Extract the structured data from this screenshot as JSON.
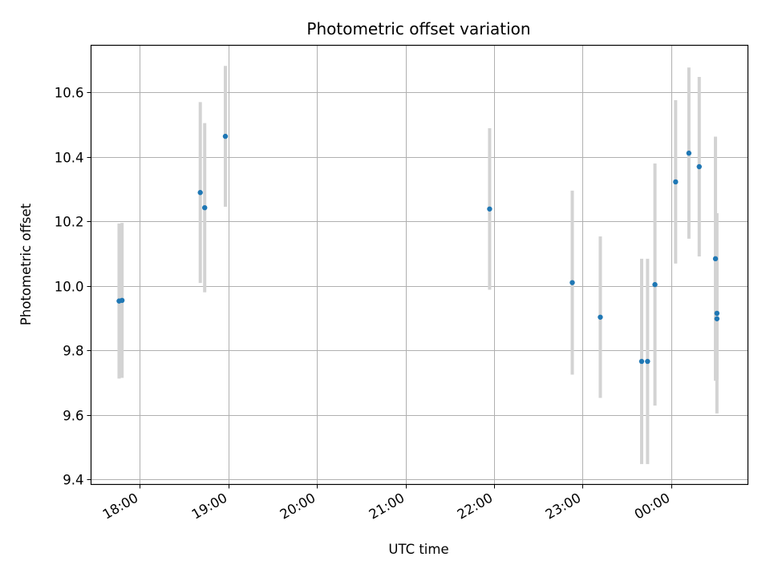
{
  "chart_data": {
    "type": "scatter",
    "title": "Photometric offset variation",
    "xlabel": "UTC time",
    "ylabel": "Photometric offset",
    "x_ticks": [
      "18:00",
      "19:00",
      "20:00",
      "21:00",
      "22:00",
      "23:00",
      "00:00"
    ],
    "y_ticks": [
      "9.4",
      "9.6",
      "9.8",
      "10.0",
      "10.2",
      "10.4",
      "10.6"
    ],
    "x_tick_hours": [
      0,
      1,
      2,
      3,
      4,
      5,
      6
    ],
    "y_tick_values": [
      9.4,
      9.6,
      9.8,
      10.0,
      10.2,
      10.4,
      10.6
    ],
    "xlim": [
      "17:27",
      "00:52"
    ],
    "ylim": [
      9.385,
      10.745
    ],
    "grid": true,
    "colors": {
      "point": "#1f77b4",
      "errorbar": "#d3d3d3",
      "grid": "#b0b0b0"
    },
    "points": [
      {
        "time": "17:46",
        "y": 9.953,
        "err": 0.24
      },
      {
        "time": "17:48",
        "y": 9.955,
        "err": 0.24
      },
      {
        "time": "18:41",
        "y": 10.289,
        "err": 0.28
      },
      {
        "time": "18:44",
        "y": 10.242,
        "err": 0.262
      },
      {
        "time": "18:58",
        "y": 10.463,
        "err": 0.218
      },
      {
        "time": "21:57",
        "y": 10.238,
        "err": 0.25
      },
      {
        "time": "22:53",
        "y": 10.01,
        "err": 0.285
      },
      {
        "time": "23:12",
        "y": 9.903,
        "err": 0.25
      },
      {
        "time": "23:40",
        "y": 9.766,
        "err": 0.318
      },
      {
        "time": "23:44",
        "y": 9.766,
        "err": 0.318
      },
      {
        "time": "23:49",
        "y": 10.004,
        "err": 0.375
      },
      {
        "time": "00:03",
        "y": 10.322,
        "err": 0.253
      },
      {
        "time": "00:12",
        "y": 10.411,
        "err": 0.265
      },
      {
        "time": "00:19",
        "y": 10.369,
        "err": 0.278
      },
      {
        "time": "00:30",
        "y": 10.084,
        "err": 0.378
      },
      {
        "time": "00:31",
        "y": 9.898,
        "err": 0.188
      },
      {
        "time": "00:31",
        "y": 9.915,
        "err": 0.31
      }
    ]
  }
}
